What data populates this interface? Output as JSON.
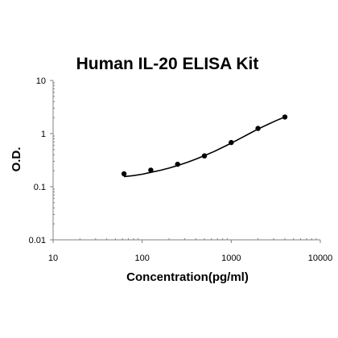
{
  "chart_data": {
    "type": "scatter",
    "title": "Human IL-20 ELISA Kit",
    "xlabel": "Concentration(pg/ml)",
    "ylabel": "O.D.",
    "x_scale": "log",
    "y_scale": "log",
    "xlim": [
      10,
      10000
    ],
    "ylim": [
      0.01,
      10
    ],
    "x_ticks": [
      "10",
      "100",
      "1000",
      "10000"
    ],
    "y_ticks": [
      "0.01",
      "0.1",
      "1",
      "10"
    ],
    "grid": false,
    "series": [
      {
        "x": [
          62.5,
          125,
          250,
          500,
          1000,
          2000,
          4000
        ],
        "y": [
          0.175,
          0.205,
          0.265,
          0.38,
          0.68,
          1.25,
          2.05
        ]
      }
    ],
    "fit_curve": {
      "x": [
        62.5,
        80,
        100,
        125,
        160,
        200,
        250,
        320,
        400,
        500,
        640,
        800,
        1000,
        1300,
        1600,
        2000,
        2600,
        3200,
        4000
      ],
      "y": [
        0.155,
        0.162,
        0.172,
        0.186,
        0.204,
        0.224,
        0.25,
        0.288,
        0.33,
        0.385,
        0.46,
        0.55,
        0.66,
        0.83,
        1.0,
        1.22,
        1.5,
        1.76,
        2.05
      ]
    },
    "colors": {
      "marker": "#000000",
      "line": "#000000",
      "axis": "#808080"
    }
  }
}
